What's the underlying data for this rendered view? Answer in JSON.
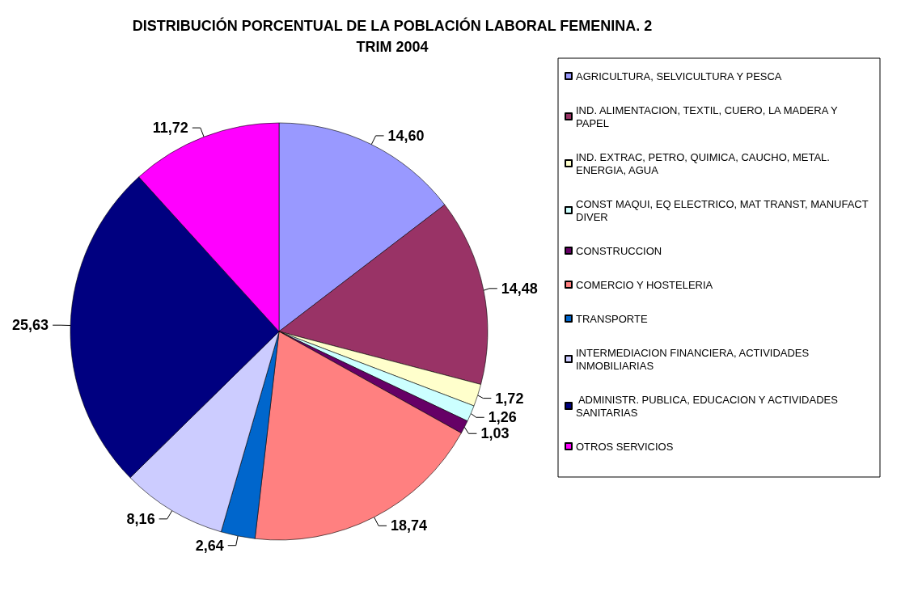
{
  "chart_data": {
    "type": "pie",
    "title": "DISTRIBUCIÓN PORCENTUAL DE LA POBLACIÓN LABORAL FEMENINA. 2\nTRIM 2004",
    "categories": [
      "AGRICULTURA, SELVICULTURA Y PESCA",
      "IND. ALIMENTACION, TEXTIL, CUERO, LA MADERA Y PAPEL",
      "IND. EXTRAC, PETRO, QUIMICA, CAUCHO, METAL. ENERGIA, AGUA",
      "CONST MAQUI, EQ ELECTRICO, MAT TRANST, MANUFACT DIVER",
      "CONSTRUCCION",
      "COMERCIO Y HOSTELERIA",
      "TRANSPORTE",
      "INTERMEDIACION FINANCIERA, ACTIVIDADES INMOBILIARIAS",
      " ADMINISTR. PUBLICA, EDUCACION Y ACTIVIDADES SANITARIAS",
      "OTROS SERVICIOS"
    ],
    "values": [
      14.6,
      14.48,
      1.72,
      1.26,
      1.03,
      18.74,
      2.64,
      8.16,
      25.63,
      11.72
    ],
    "value_labels": [
      "14,60",
      "14,48",
      "1,72",
      "1,26",
      "1,03",
      "18,74",
      "2,64",
      "8,16",
      "25,63",
      "11,72"
    ],
    "colors": [
      "#9999ff",
      "#993366",
      "#ffffcc",
      "#ccffff",
      "#660066",
      "#ff8080",
      "#0066cc",
      "#ccccff",
      "#000080",
      "#ff00ff"
    ],
    "legend": "right"
  }
}
